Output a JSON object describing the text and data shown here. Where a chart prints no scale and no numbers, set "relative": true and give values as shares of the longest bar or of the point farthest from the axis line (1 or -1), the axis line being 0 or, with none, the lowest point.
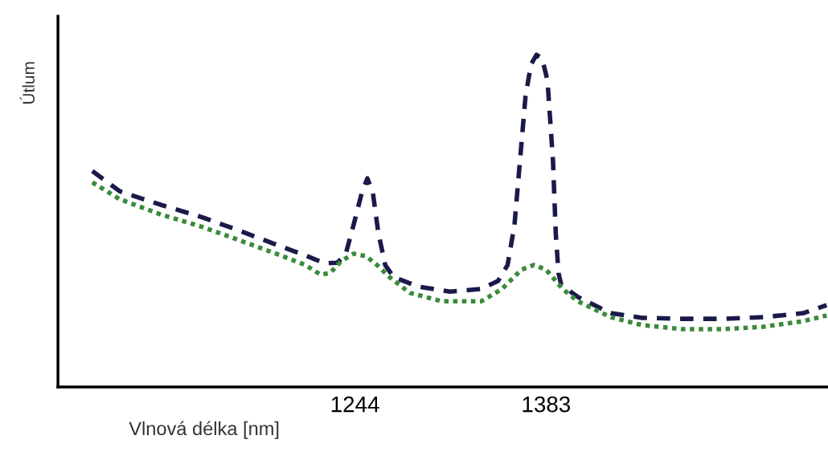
{
  "chart_data": {
    "type": "line",
    "relative": true,
    "xlabel": "Vlnová délka [nm]",
    "ylabel": "Útlum",
    "xlim": [
      1028,
      1588
    ],
    "xticks": [
      1244,
      1383
    ],
    "grid": false,
    "legend": false,
    "marker": "none",
    "series": [
      {
        "color": "#1a1a4a",
        "line_style": "dashed",
        "x": [
          1053,
          1073,
          1103,
          1132,
          1161,
          1190,
          1208,
          1222,
          1231,
          1237,
          1243,
          1249,
          1253,
          1257,
          1261,
          1266,
          1272,
          1290,
          1313,
          1336,
          1348,
          1355,
          1360,
          1364,
          1368,
          1372,
          1376,
          1380,
          1384,
          1388,
          1390,
          1392,
          1394,
          1406,
          1430,
          1453,
          1482,
          1512,
          1541,
          1570,
          1587
        ],
        "values": [
          0.65,
          0.589,
          0.548,
          0.512,
          0.469,
          0.423,
          0.396,
          0.372,
          0.374,
          0.396,
          0.488,
          0.585,
          0.628,
          0.585,
          0.464,
          0.367,
          0.331,
          0.302,
          0.287,
          0.295,
          0.319,
          0.367,
          0.488,
          0.681,
          0.874,
          0.971,
          1.0,
          0.99,
          0.923,
          0.681,
          0.464,
          0.343,
          0.307,
          0.271,
          0.222,
          0.208,
          0.205,
          0.205,
          0.21,
          0.222,
          0.246
        ]
      },
      {
        "color": "#3a8a3a",
        "line_style": "dotted",
        "x": [
          1053,
          1073,
          1103,
          1132,
          1161,
          1190,
          1208,
          1219,
          1226,
          1234,
          1243,
          1252,
          1260,
          1269,
          1284,
          1307,
          1336,
          1351,
          1365,
          1374,
          1383,
          1395,
          1406,
          1430,
          1453,
          1482,
          1512,
          1541,
          1570,
          1587
        ],
        "values": [
          0.616,
          0.565,
          0.519,
          0.483,
          0.44,
          0.396,
          0.367,
          0.338,
          0.343,
          0.379,
          0.401,
          0.394,
          0.367,
          0.331,
          0.283,
          0.258,
          0.258,
          0.295,
          0.353,
          0.367,
          0.353,
          0.295,
          0.258,
          0.21,
          0.186,
          0.174,
          0.174,
          0.181,
          0.198,
          0.215
        ]
      }
    ]
  }
}
